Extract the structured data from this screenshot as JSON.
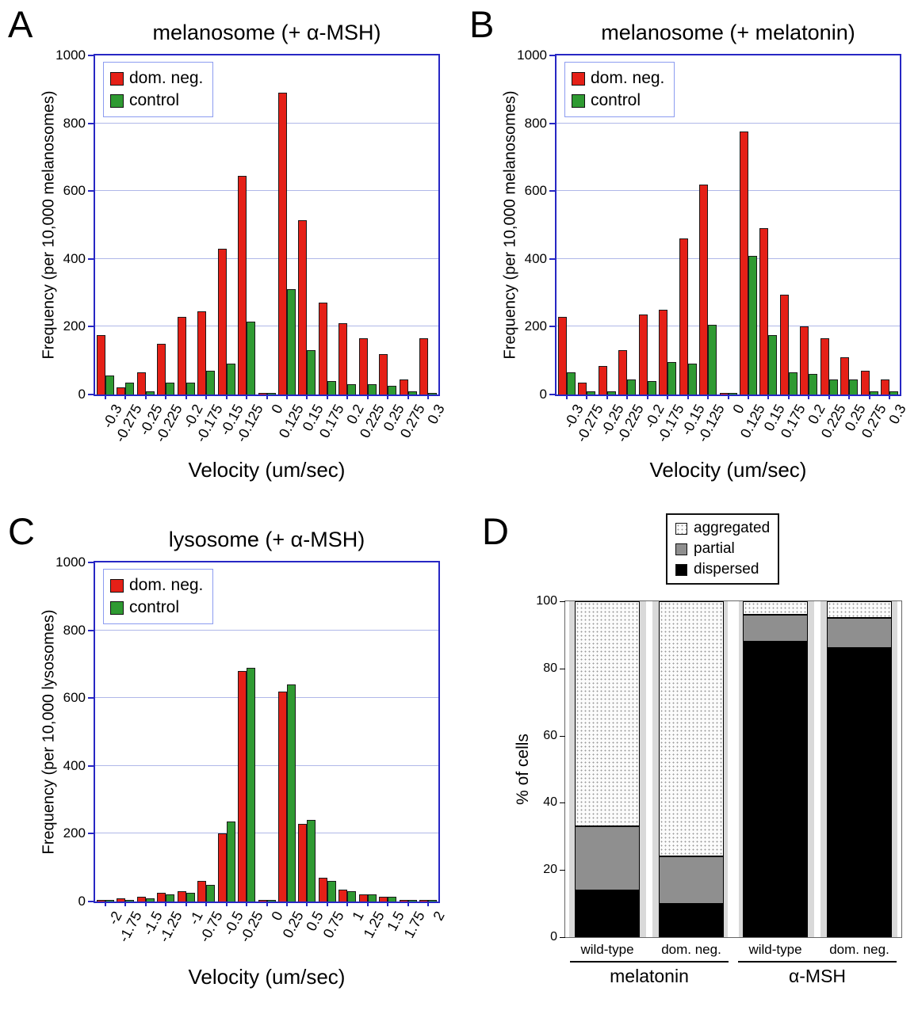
{
  "chart_data": [
    {
      "id": "A",
      "panel_letter": "A",
      "type": "bar",
      "title": "melanosome (+ α-MSH)",
      "xlabel": "Velocity (um/sec)",
      "ylabel": "Frequency (per 10,000 melanosomes)",
      "ylim": [
        0,
        1000
      ],
      "yticks": [
        0,
        200,
        400,
        600,
        800,
        1000
      ],
      "grid": true,
      "legend_position": "top-left",
      "axis_color": "#2727c4",
      "grid_color": "#b0b8e8",
      "categories": [
        "-0.3",
        "-0.275",
        "-0.25",
        "-0.225",
        "-0.2",
        "-0.175",
        "-0.15",
        "-0.125",
        "0",
        "0.125",
        "0.15",
        "0.175",
        "0.2",
        "0.225",
        "0.25",
        "0.275",
        "0.3"
      ],
      "series": [
        {
          "name": "dom. neg.",
          "color": "#e52017",
          "values": [
            175,
            20,
            65,
            150,
            230,
            245,
            430,
            645,
            5,
            890,
            515,
            270,
            210,
            165,
            120,
            45,
            165
          ]
        },
        {
          "name": "control",
          "color": "#2f9a32",
          "values": [
            55,
            35,
            10,
            35,
            35,
            70,
            90,
            215,
            5,
            310,
            130,
            40,
            30,
            30,
            25,
            10,
            5
          ]
        }
      ]
    },
    {
      "id": "B",
      "panel_letter": "B",
      "type": "bar",
      "title": "melanosome (+ melatonin)",
      "xlabel": "Velocity (um/sec)",
      "ylabel": "Frequency (per 10,000 melanosomes)",
      "ylim": [
        0,
        1000
      ],
      "yticks": [
        0,
        200,
        400,
        600,
        800,
        1000
      ],
      "grid": true,
      "legend_position": "top-left",
      "axis_color": "#2727c4",
      "grid_color": "#b0b8e8",
      "categories": [
        "-0.3",
        "-0.275",
        "-0.25",
        "-0.225",
        "-0.2",
        "-0.175",
        "-0.15",
        "-0.125",
        "0",
        "0.125",
        "0.15",
        "0.175",
        "0.2",
        "0.225",
        "0.25",
        "0.275",
        "0.3"
      ],
      "series": [
        {
          "name": "dom. neg.",
          "color": "#e52017",
          "values": [
            230,
            35,
            85,
            130,
            235,
            250,
            460,
            620,
            5,
            775,
            490,
            295,
            200,
            165,
            110,
            70,
            45
          ]
        },
        {
          "name": "control",
          "color": "#2f9a32",
          "values": [
            65,
            10,
            10,
            45,
            40,
            95,
            90,
            205,
            5,
            410,
            175,
            65,
            60,
            45,
            45,
            10,
            10
          ]
        }
      ]
    },
    {
      "id": "C",
      "panel_letter": "C",
      "type": "bar",
      "title": "lysosome (+ α-MSH)",
      "xlabel": "Velocity (um/sec)",
      "ylabel": "Frequency (per 10,000 lysosomes)",
      "ylim": [
        0,
        1000
      ],
      "yticks": [
        0,
        200,
        400,
        600,
        800,
        1000
      ],
      "grid": true,
      "legend_position": "top-left",
      "axis_color": "#2727c4",
      "grid_color": "#b0b8e8",
      "categories": [
        "-2",
        "-1.75",
        "-1.5",
        "-1.25",
        "-1",
        "-0.75",
        "-0.5",
        "-0.25",
        "0",
        "0.25",
        "0.5",
        "0.75",
        "1",
        "1.25",
        "1.5",
        "1.75",
        "2"
      ],
      "series": [
        {
          "name": "dom. neg.",
          "color": "#e52017",
          "values": [
            5,
            10,
            15,
            25,
            30,
            60,
            200,
            680,
            5,
            620,
            230,
            70,
            35,
            20,
            15,
            5,
            3
          ]
        },
        {
          "name": "control",
          "color": "#2f9a32",
          "values": [
            3,
            5,
            10,
            20,
            25,
            50,
            235,
            690,
            5,
            640,
            240,
            60,
            30,
            20,
            15,
            5,
            3
          ]
        }
      ]
    },
    {
      "id": "D",
      "panel_letter": "D",
      "type": "stacked-bar",
      "ylabel": "% of cells",
      "ylim": [
        0,
        100
      ],
      "yticks": [
        0,
        20,
        40,
        60,
        80,
        100
      ],
      "legend_position": "top-right-outside",
      "categories": [
        "wild-type",
        "dom. neg.",
        "wild-type",
        "dom. neg."
      ],
      "groups": [
        "melatonin",
        "α-MSH"
      ],
      "series": [
        {
          "name": "dispersed",
          "fill": "#000000",
          "values": [
            14,
            10,
            88,
            86
          ]
        },
        {
          "name": "partial",
          "fill": "#8f8f8f",
          "values": [
            19,
            14,
            8,
            9
          ]
        },
        {
          "name": "aggregated",
          "fill": "dotted",
          "values": [
            67,
            76,
            4,
            5
          ]
        }
      ]
    }
  ]
}
